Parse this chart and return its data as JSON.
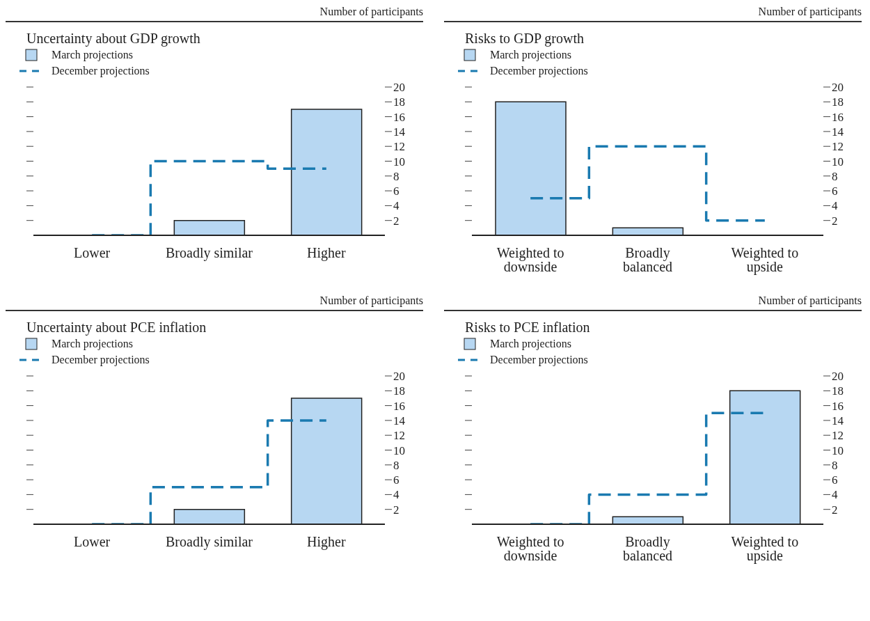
{
  "chart_data": [
    {
      "type": "bar",
      "title": "Uncertainty about GDP growth",
      "annotations": [
        "Number of participants"
      ],
      "categories": [
        "Lower",
        "Broadly similar",
        "Higher"
      ],
      "series": [
        {
          "name": "March projections",
          "color": "#b7d7f2",
          "values": [
            0,
            2,
            17
          ]
        },
        {
          "name": "December projections",
          "type": "step",
          "color": "#1a7ab0",
          "line_style": "dashed",
          "values": [
            0,
            10,
            9
          ]
        }
      ],
      "ylim": [
        0,
        20
      ],
      "yticks": [
        2,
        4,
        6,
        8,
        10,
        12,
        14,
        16,
        18,
        20
      ],
      "grid": false,
      "legend": "top left"
    },
    {
      "type": "bar",
      "title": "Risks to GDP growth",
      "annotations": [
        "Number of participants"
      ],
      "categories": [
        "Weighted to downside",
        "Broadly balanced",
        "Weighted to upside"
      ],
      "series": [
        {
          "name": "March projections",
          "color": "#b7d7f2",
          "values": [
            18,
            1,
            0
          ]
        },
        {
          "name": "December projections",
          "type": "step",
          "color": "#1a7ab0",
          "line_style": "dashed",
          "values": [
            5,
            12,
            2
          ]
        }
      ],
      "ylim": [
        0,
        20
      ],
      "yticks": [
        2,
        4,
        6,
        8,
        10,
        12,
        14,
        16,
        18,
        20
      ],
      "grid": false,
      "legend": "top left"
    },
    {
      "type": "bar",
      "title": "Uncertainty about PCE inflation",
      "annotations": [
        "Number of participants"
      ],
      "categories": [
        "Lower",
        "Broadly similar",
        "Higher"
      ],
      "series": [
        {
          "name": "March projections",
          "color": "#b7d7f2",
          "values": [
            0,
            2,
            17
          ]
        },
        {
          "name": "December projections",
          "type": "step",
          "color": "#1a7ab0",
          "line_style": "dashed",
          "values": [
            0,
            5,
            14
          ]
        }
      ],
      "ylim": [
        0,
        20
      ],
      "yticks": [
        2,
        4,
        6,
        8,
        10,
        12,
        14,
        16,
        18,
        20
      ],
      "grid": false,
      "legend": "top left"
    },
    {
      "type": "bar",
      "title": "Risks to PCE inflation",
      "annotations": [
        "Number of participants"
      ],
      "categories": [
        "Weighted to downside",
        "Broadly balanced",
        "Weighted to upside"
      ],
      "series": [
        {
          "name": "March projections",
          "color": "#b7d7f2",
          "values": [
            0,
            1,
            18
          ]
        },
        {
          "name": "December projections",
          "type": "step",
          "color": "#1a7ab0",
          "line_style": "dashed",
          "values": [
            0,
            4,
            15
          ]
        }
      ],
      "ylim": [
        0,
        20
      ],
      "yticks": [
        2,
        4,
        6,
        8,
        10,
        12,
        14,
        16,
        18,
        20
      ],
      "grid": false,
      "legend": "top left"
    }
  ]
}
